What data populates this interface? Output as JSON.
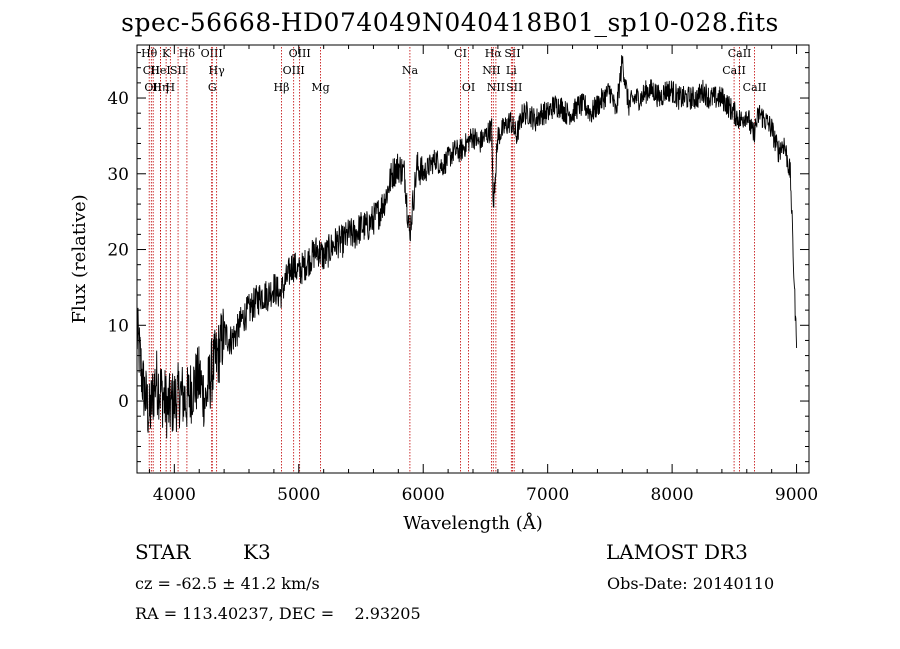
{
  "chart_data": {
    "type": "line",
    "title": "spec-56668-HD074049N040418B01_sp10-028.fits",
    "xlabel": "Wavelength (Å)",
    "ylabel": "Flux (relative)",
    "xlim": [
      3700,
      9100
    ],
    "ylim": [
      -9.5,
      47
    ],
    "xticks": [
      4000,
      5000,
      6000,
      7000,
      8000,
      9000
    ],
    "yticks": [
      0,
      10,
      20,
      30,
      40
    ],
    "grid": false,
    "series": [
      {
        "name": "flux",
        "x": [
          3700,
          3750,
          3800,
          3850,
          3900,
          3950,
          4000,
          4050,
          4100,
          4150,
          4200,
          4250,
          4300,
          4350,
          4400,
          4450,
          4500,
          4550,
          4600,
          4650,
          4700,
          4750,
          4800,
          4850,
          4900,
          4950,
          5000,
          5050,
          5100,
          5150,
          5200,
          5250,
          5300,
          5350,
          5400,
          5450,
          5500,
          5550,
          5600,
          5650,
          5700,
          5750,
          5800,
          5850,
          5890,
          5950,
          6000,
          6050,
          6100,
          6150,
          6200,
          6250,
          6300,
          6350,
          6400,
          6450,
          6500,
          6550,
          6563,
          6600,
          6650,
          6700,
          6750,
          6800,
          6850,
          6900,
          6950,
          7000,
          7050,
          7100,
          7150,
          7200,
          7250,
          7300,
          7350,
          7400,
          7450,
          7500,
          7550,
          7600,
          7650,
          7700,
          7750,
          7800,
          7850,
          7900,
          7950,
          8000,
          8050,
          8100,
          8150,
          8200,
          8250,
          8300,
          8350,
          8400,
          8450,
          8500,
          8550,
          8600,
          8650,
          8700,
          8750,
          8800,
          8850,
          8900,
          8950,
          9000
        ],
        "y": [
          9,
          2,
          -2,
          3,
          1,
          -1,
          0,
          1,
          0,
          2,
          3,
          0,
          4,
          6,
          9,
          8,
          9,
          11,
          12,
          13,
          14,
          14,
          15,
          14,
          16,
          18,
          17,
          18,
          19,
          20,
          19,
          20,
          21,
          21,
          22,
          22,
          23,
          23,
          24,
          25,
          27,
          30,
          31,
          30,
          22,
          31,
          30,
          31,
          32,
          31,
          32,
          33,
          33,
          34,
          35,
          34,
          35,
          36,
          26,
          35,
          36,
          37,
          35,
          38,
          38,
          37,
          38,
          38,
          39,
          39,
          38,
          38,
          39,
          39,
          38,
          39,
          40,
          41,
          38,
          45,
          39,
          40,
          40,
          41,
          41,
          40,
          41,
          41,
          40,
          40,
          40,
          40,
          41,
          40,
          40,
          40,
          39,
          38,
          37,
          38,
          35,
          38,
          37,
          36,
          33,
          34,
          30,
          7
        ]
      }
    ],
    "lines": [
      {
        "label": "Hθ",
        "x": 3798,
        "row": 1
      },
      {
        "label": "CII",
        "x": 3815,
        "row": 2
      },
      {
        "label": "OII",
        "x": 3830,
        "row": 3
      },
      {
        "label": "Hη",
        "x": 3889,
        "row": 3
      },
      {
        "label": "HeI",
        "x": 3889,
        "row": 2
      },
      {
        "label": "K",
        "x": 3934,
        "row": 1
      },
      {
        "label": "H",
        "x": 3968,
        "row": 3
      },
      {
        "label": "SII",
        "x": 4030,
        "row": 2
      },
      {
        "label": "Hδ",
        "x": 4101,
        "row": 1
      },
      {
        "label": "OIII",
        "x": 4300,
        "row": 1
      },
      {
        "label": "Hγ",
        "x": 4340,
        "row": 2
      },
      {
        "label": "G",
        "x": 4305,
        "row": 3
      },
      {
        "label": "Hβ",
        "x": 4861,
        "row": 3
      },
      {
        "label": "OIII",
        "x": 4959,
        "row": 2
      },
      {
        "label": "OIII",
        "x": 5007,
        "row": 1
      },
      {
        "label": "Mg",
        "x": 5175,
        "row": 3
      },
      {
        "label": "Na",
        "x": 5893,
        "row": 2
      },
      {
        "label": "CI",
        "x": 6300,
        "row": 1
      },
      {
        "label": "OI",
        "x": 6364,
        "row": 3
      },
      {
        "label": "Hα",
        "x": 6563,
        "row": 1
      },
      {
        "label": "NII",
        "x": 6548,
        "row": 2
      },
      {
        "label": "NII",
        "x": 6584,
        "row": 3
      },
      {
        "label": "SII",
        "x": 6717,
        "row": 1
      },
      {
        "label": "Li",
        "x": 6708,
        "row": 2
      },
      {
        "label": "SII",
        "x": 6731,
        "row": 3
      },
      {
        "label": "CaII",
        "x": 8498,
        "row": 2
      },
      {
        "label": "CaII",
        "x": 8542,
        "row": 1
      },
      {
        "label": "CaII",
        "x": 8662,
        "row": 3
      }
    ]
  },
  "info": {
    "object_type": "STAR",
    "subclass": "K3",
    "survey": "LAMOST DR3",
    "cz": "cz = -62.5 ± 41.2 km/s",
    "obs_date": "Obs-Date: 20140110",
    "coords": "RA = 113.40237, DEC =    2.93205"
  }
}
